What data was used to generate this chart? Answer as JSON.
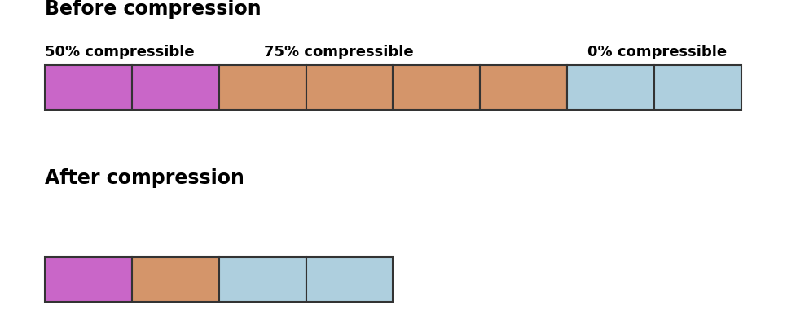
{
  "title_before": "Before compression",
  "title_after": "After compression",
  "label_50": "50% compressible",
  "label_75": "75% compressible",
  "label_0": "0% compressible",
  "color_purple": "#C966C8",
  "color_orange": "#D4956A",
  "color_blue": "#AECFDE",
  "color_edge": "#333333",
  "bg_color": "#FFFFFF",
  "before_blocks": [
    {
      "x": 0,
      "color": "#C966C8"
    },
    {
      "x": 1,
      "color": "#C966C8"
    },
    {
      "x": 2,
      "color": "#D4956A"
    },
    {
      "x": 3,
      "color": "#D4956A"
    },
    {
      "x": 4,
      "color": "#D4956A"
    },
    {
      "x": 5,
      "color": "#D4956A"
    },
    {
      "x": 6,
      "color": "#AECFDE"
    },
    {
      "x": 7,
      "color": "#AECFDE"
    }
  ],
  "after_blocks": [
    {
      "x": 0,
      "color": "#C966C8"
    },
    {
      "x": 1,
      "color": "#D4956A"
    },
    {
      "x": 2,
      "color": "#AECFDE"
    },
    {
      "x": 3,
      "color": "#AECFDE"
    }
  ],
  "n_before": 8,
  "n_after": 4,
  "title_fontsize": 17,
  "label_fontsize": 13
}
